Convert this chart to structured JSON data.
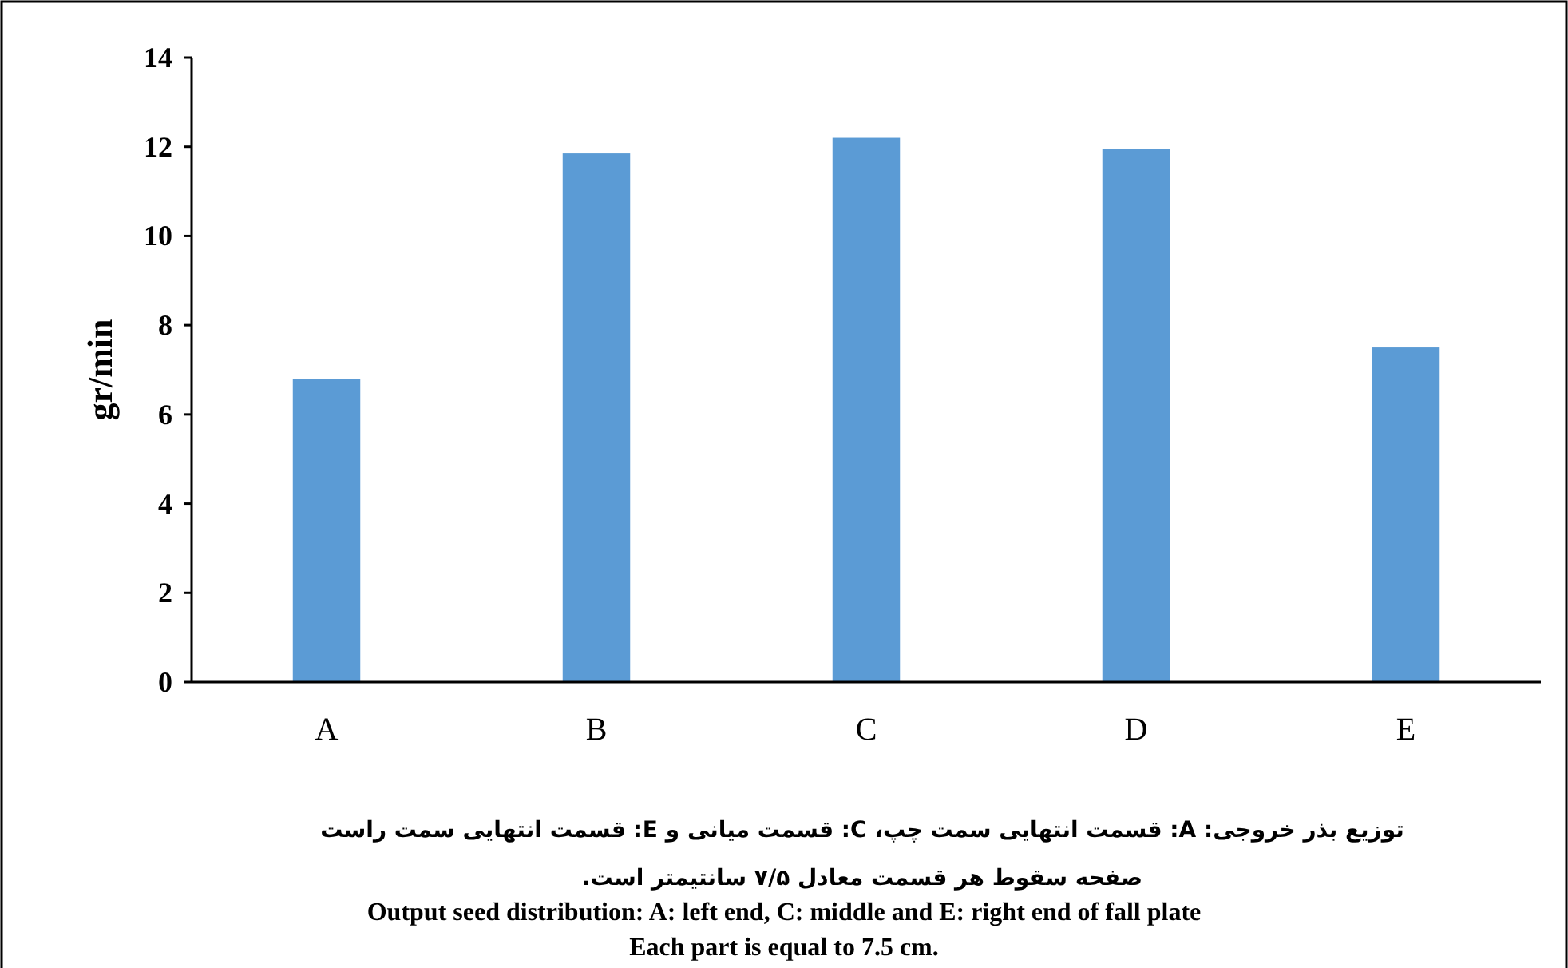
{
  "chart_data": {
    "type": "bar",
    "ylabel": "gr/min",
    "categories": [
      "A",
      "B",
      "C",
      "D",
      "E"
    ],
    "values": [
      6.8,
      11.85,
      12.2,
      11.95,
      7.5
    ],
    "color": "#5b9bd5",
    "ylim": [
      0,
      14
    ],
    "yticks": [
      0,
      2,
      4,
      6,
      8,
      10,
      12,
      14
    ],
    "annotations": [
      "توزیع بذر خروجی: A: قسمت انتهایی سمت چپ، C: قسمت میانی و E: قسمت انتهایی سمت راست صفحه سقوط هر قسمت معادل ۷/۵ سانتیمتر است.",
      "Output seed distribution:  A: left end, C: middle and E: right end of fall plate",
      "Each part is equal to 7.5 cm."
    ]
  }
}
